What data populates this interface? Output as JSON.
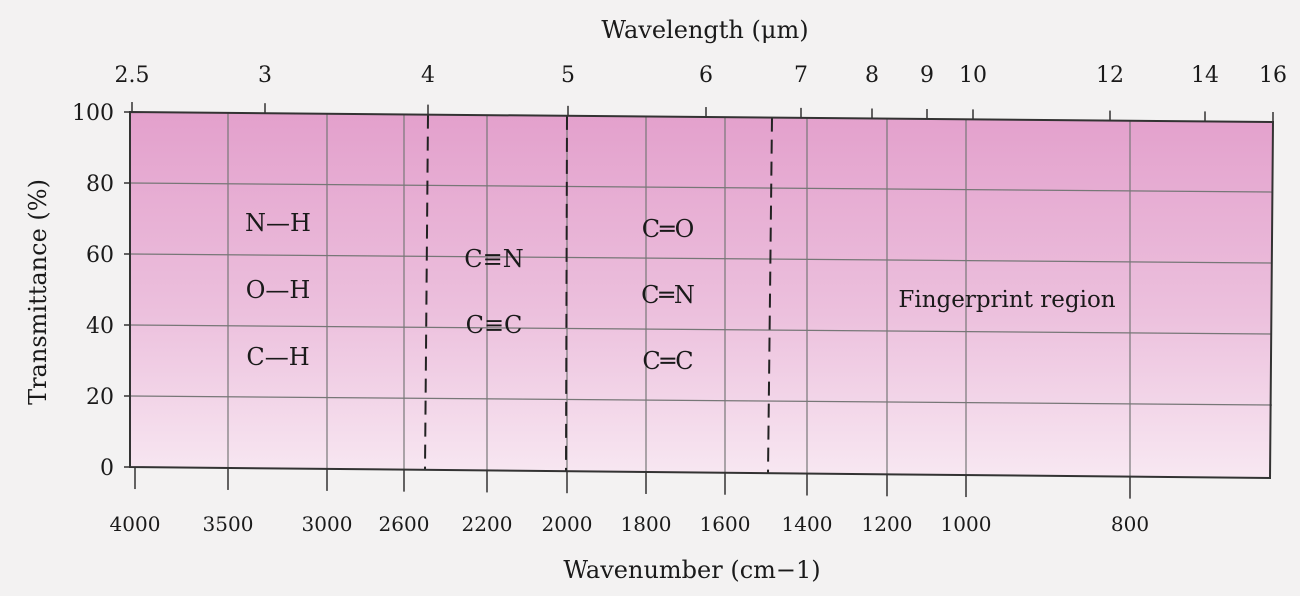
{
  "chart_data": {
    "type": "diagram",
    "top_axis": {
      "label": "Wavelength (μm)",
      "ticks": [
        "2.5",
        "3",
        "4",
        "5",
        "6",
        "7",
        "8",
        "9",
        "10",
        "12",
        "14",
        "16"
      ]
    },
    "bottom_axis": {
      "label": "Wavenumber (cm−1)",
      "ticks": [
        "4000",
        "3500",
        "3000",
        "2600",
        "2200",
        "2000",
        "1800",
        "1600",
        "1400",
        "1200",
        "1000",
        "800"
      ]
    },
    "y_axis": {
      "label": "Transmittance (%)",
      "ticks": [
        "100",
        "80",
        "60",
        "40",
        "20",
        "0"
      ]
    },
    "regions": [
      {
        "bonds": [
          "N—H",
          "O—H",
          "C—H"
        ]
      },
      {
        "bonds": [
          "C≡N",
          "C≡C"
        ]
      },
      {
        "bonds": [
          "C═O",
          "C═N",
          "C═C"
        ]
      },
      {
        "label": "Fingerprint region"
      }
    ],
    "colors": {
      "band_top": "#e6a6cf",
      "band_bottom": "#f8e6f1",
      "grid": "#777777"
    }
  }
}
